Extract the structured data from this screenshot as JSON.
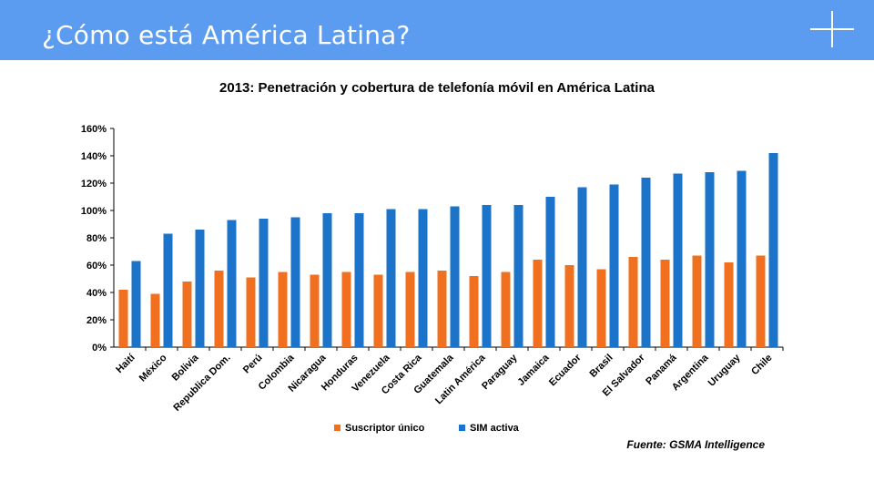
{
  "slide": {
    "title": "¿Cómo está América Latina?"
  },
  "source": "Fuente:  GSMA Intelligence",
  "colors": {
    "header": "#5b9bf0",
    "series_unique": "#f07020",
    "series_sim": "#1b74c9"
  },
  "chart_data": {
    "type": "bar",
    "title": "2013: Penetración y cobertura de telefonía móvil en América Latina",
    "xlabel": "",
    "ylabel": "",
    "ylim": [
      0,
      160
    ],
    "yticks": [
      "0%",
      "20%",
      "40%",
      "60%",
      "80%",
      "100%",
      "120%",
      "140%",
      "160%"
    ],
    "grid": false,
    "legend": "bottom",
    "categories": [
      "Haití",
      "México",
      "Bolivia",
      "Republica Dom.",
      "Perú",
      "Colombia",
      "Nicaragua",
      "Honduras",
      "Venezuela",
      "Costa Rica",
      "Guatemala",
      "Latin América",
      "Paraguay",
      "Jamaica",
      "Ecuador",
      "Brasil",
      "El Salvador",
      "Panamá",
      "Argentina",
      "Uruguay",
      "Chile"
    ],
    "series": [
      {
        "name": "Suscriptor único",
        "color": "#f07020",
        "values": [
          42,
          39,
          48,
          56,
          51,
          55,
          53,
          55,
          53,
          55,
          56,
          52,
          55,
          64,
          60,
          57,
          66,
          64,
          67,
          62,
          67
        ]
      },
      {
        "name": "SIM activa",
        "color": "#1b74c9",
        "values": [
          63,
          83,
          86,
          93,
          94,
          95,
          98,
          98,
          101,
          101,
          103,
          104,
          104,
          110,
          117,
          119,
          124,
          127,
          128,
          129,
          142
        ]
      }
    ]
  }
}
